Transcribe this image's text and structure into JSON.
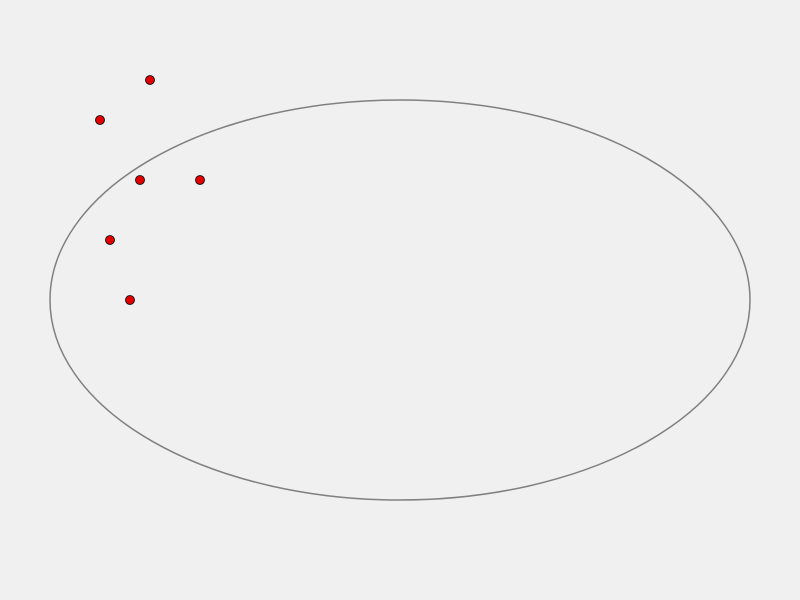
{
  "colors": {
    "background": "#f0f0f0",
    "ellipse_stroke": "#808080",
    "point_fill": "#e00000",
    "point_stroke": "#000000"
  },
  "ellipse": {
    "present": true
  },
  "points": {
    "count": 6,
    "shape": "circle"
  }
}
